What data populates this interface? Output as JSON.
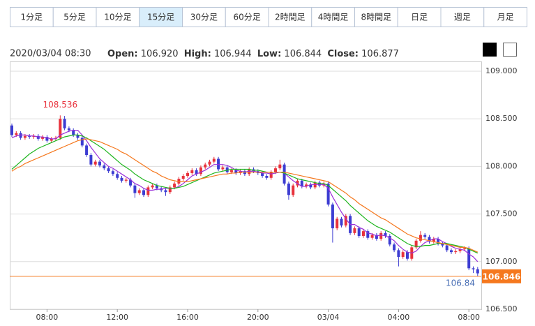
{
  "toolbar": {
    "buttons": [
      "1分足",
      "5分足",
      "10分足",
      "15分足",
      "30分足",
      "60分足",
      "2時間足",
      "4時間足",
      "8時間足",
      "日足",
      "週足",
      "月足"
    ],
    "selected": 3
  },
  "info": {
    "datetime": "2020/03/04 08:30",
    "open_label": "Open:",
    "open": "106.920",
    "high_label": "High:",
    "high": "106.944",
    "low_label": "Low:",
    "low": "106.844",
    "close_label": "Close:",
    "close": "106.877"
  },
  "chart_data": {
    "type": "candlestick",
    "categories": [
      null,
      null,
      null,
      null,
      null,
      null,
      null,
      null,
      "08:00",
      null,
      null,
      null,
      null,
      null,
      null,
      null,
      null,
      null,
      null,
      null,
      null,
      null,
      null,
      null,
      "12:00",
      null,
      null,
      null,
      null,
      null,
      null,
      null,
      null,
      null,
      null,
      null,
      null,
      null,
      null,
      null,
      "16:00",
      null,
      null,
      null,
      null,
      null,
      null,
      null,
      null,
      null,
      null,
      null,
      null,
      null,
      null,
      null,
      "20:00",
      null,
      null,
      null,
      null,
      null,
      null,
      null,
      null,
      null,
      null,
      null,
      null,
      null,
      null,
      null,
      "03/04",
      null,
      null,
      null,
      null,
      null,
      null,
      null,
      null,
      null,
      null,
      null,
      null,
      null,
      null,
      null,
      "04:00",
      null,
      null,
      null,
      null,
      null,
      null,
      null,
      null,
      null,
      null,
      null,
      null,
      null,
      null,
      null,
      "08:00",
      null,
      null
    ],
    "ohlc": [
      [
        108.43,
        108.45,
        108.31,
        108.33
      ],
      [
        108.33,
        108.37,
        108.31,
        108.35
      ],
      [
        108.35,
        108.37,
        108.28,
        108.3
      ],
      [
        108.3,
        108.34,
        108.28,
        108.32
      ],
      [
        108.32,
        108.34,
        108.29,
        108.31
      ],
      [
        108.31,
        108.34,
        108.29,
        108.32
      ],
      [
        108.32,
        108.34,
        108.27,
        108.29
      ],
      [
        108.29,
        108.33,
        108.27,
        108.31
      ],
      [
        108.31,
        108.33,
        108.25,
        108.27
      ],
      [
        108.27,
        108.31,
        108.25,
        108.29
      ],
      [
        108.29,
        108.32,
        108.27,
        108.3
      ],
      [
        108.3,
        108.536,
        108.28,
        108.5
      ],
      [
        108.5,
        108.53,
        108.38,
        108.4
      ],
      [
        108.4,
        108.42,
        108.36,
        108.38
      ],
      [
        108.38,
        108.4,
        108.31,
        108.33
      ],
      [
        108.33,
        108.35,
        108.28,
        108.3
      ],
      [
        108.3,
        108.32,
        108.2,
        108.22
      ],
      [
        108.22,
        108.24,
        108.1,
        108.12
      ],
      [
        108.12,
        108.14,
        108.0,
        108.02
      ],
      [
        108.02,
        108.07,
        108.0,
        108.05
      ],
      [
        108.05,
        108.07,
        107.99,
        108.01
      ],
      [
        108.01,
        108.03,
        107.96,
        107.98
      ],
      [
        107.98,
        108.0,
        107.93,
        107.95
      ],
      [
        107.95,
        107.97,
        107.9,
        107.92
      ],
      [
        107.92,
        107.94,
        107.86,
        107.88
      ],
      [
        107.88,
        107.9,
        107.83,
        107.85
      ],
      [
        107.85,
        107.88,
        107.83,
        107.86
      ],
      [
        107.86,
        107.88,
        107.78,
        107.8
      ],
      [
        107.8,
        107.82,
        107.67,
        107.72
      ],
      [
        107.72,
        107.77,
        107.7,
        107.75
      ],
      [
        107.75,
        107.77,
        107.68,
        107.7
      ],
      [
        107.7,
        107.8,
        107.68,
        107.78
      ],
      [
        107.78,
        107.82,
        107.76,
        107.8
      ],
      [
        107.8,
        107.82,
        107.75,
        107.77
      ],
      [
        107.77,
        107.79,
        107.73,
        107.75
      ],
      [
        107.75,
        107.77,
        107.69,
        107.73
      ],
      [
        107.73,
        107.8,
        107.71,
        107.78
      ],
      [
        107.78,
        107.84,
        107.76,
        107.82
      ],
      [
        107.82,
        107.89,
        107.8,
        107.87
      ],
      [
        107.87,
        107.92,
        107.85,
        107.9
      ],
      [
        107.9,
        107.95,
        107.88,
        107.93
      ],
      [
        107.93,
        107.98,
        107.91,
        107.96
      ],
      [
        107.96,
        107.98,
        107.9,
        107.92
      ],
      [
        107.92,
        108.01,
        107.9,
        107.99
      ],
      [
        107.99,
        108.04,
        107.97,
        108.02
      ],
      [
        108.02,
        108.07,
        108.0,
        108.05
      ],
      [
        108.05,
        108.1,
        108.03,
        108.08
      ],
      [
        108.08,
        108.1,
        107.95,
        107.97
      ],
      [
        107.97,
        108.01,
        107.95,
        107.99
      ],
      [
        107.99,
        108.01,
        107.92,
        107.94
      ],
      [
        107.94,
        107.98,
        107.92,
        107.96
      ],
      [
        107.96,
        107.98,
        107.91,
        107.93
      ],
      [
        107.93,
        107.97,
        107.91,
        107.95
      ],
      [
        107.95,
        107.97,
        107.9,
        107.92
      ],
      [
        107.92,
        107.99,
        107.9,
        107.97
      ],
      [
        107.97,
        107.99,
        107.93,
        107.95
      ],
      [
        107.95,
        107.97,
        107.91,
        107.93
      ],
      [
        107.93,
        107.95,
        107.88,
        107.9
      ],
      [
        107.9,
        107.92,
        107.86,
        107.88
      ],
      [
        107.88,
        107.96,
        107.86,
        107.94
      ],
      [
        107.94,
        108.0,
        107.92,
        107.98
      ],
      [
        107.98,
        108.07,
        107.96,
        108.02
      ],
      [
        108.02,
        108.04,
        107.8,
        107.82
      ],
      [
        107.82,
        107.84,
        107.65,
        107.7
      ],
      [
        107.7,
        107.82,
        107.68,
        107.8
      ],
      [
        107.8,
        107.87,
        107.78,
        107.85
      ],
      [
        107.85,
        107.87,
        107.77,
        107.79
      ],
      [
        107.79,
        107.83,
        107.77,
        107.81
      ],
      [
        107.81,
        107.83,
        107.76,
        107.78
      ],
      [
        107.78,
        107.85,
        107.76,
        107.83
      ],
      [
        107.83,
        107.85,
        107.78,
        107.8
      ],
      [
        107.8,
        107.84,
        107.78,
        107.82
      ],
      [
        107.82,
        107.84,
        107.58,
        107.6
      ],
      [
        107.6,
        107.62,
        107.2,
        107.35
      ],
      [
        107.35,
        107.47,
        107.33,
        107.45
      ],
      [
        107.45,
        107.47,
        107.36,
        107.38
      ],
      [
        107.38,
        107.5,
        107.36,
        107.48
      ],
      [
        107.48,
        107.5,
        107.28,
        107.3
      ],
      [
        107.3,
        107.37,
        107.28,
        107.35
      ],
      [
        107.35,
        107.37,
        107.25,
        107.27
      ],
      [
        107.27,
        107.34,
        107.25,
        107.32
      ],
      [
        107.32,
        107.34,
        107.23,
        107.25
      ],
      [
        107.25,
        107.3,
        107.23,
        107.28
      ],
      [
        107.28,
        107.3,
        107.22,
        107.24
      ],
      [
        107.24,
        107.32,
        107.22,
        107.3
      ],
      [
        107.3,
        107.32,
        107.25,
        107.27
      ],
      [
        107.27,
        107.29,
        107.16,
        107.18
      ],
      [
        107.18,
        107.2,
        107.1,
        107.12
      ],
      [
        107.12,
        107.14,
        106.95,
        107.05
      ],
      [
        107.05,
        107.12,
        107.03,
        107.1
      ],
      [
        107.1,
        107.12,
        107.01,
        107.03
      ],
      [
        107.03,
        107.17,
        107.01,
        107.15
      ],
      [
        107.15,
        107.24,
        107.13,
        107.22
      ],
      [
        107.22,
        107.32,
        107.2,
        107.28
      ],
      [
        107.28,
        107.3,
        107.24,
        107.26
      ],
      [
        107.26,
        107.28,
        107.19,
        107.21
      ],
      [
        107.21,
        107.26,
        107.19,
        107.24
      ],
      [
        107.24,
        107.26,
        107.17,
        107.19
      ],
      [
        107.19,
        107.21,
        107.15,
        107.17
      ],
      [
        107.17,
        107.19,
        107.1,
        107.12
      ],
      [
        107.12,
        107.14,
        107.08,
        107.1
      ],
      [
        107.1,
        107.13,
        107.08,
        107.11
      ],
      [
        107.11,
        107.15,
        107.09,
        107.13
      ],
      [
        107.13,
        107.16,
        107.11,
        107.14
      ],
      [
        107.14,
        107.16,
        106.91,
        106.93
      ],
      [
        106.93,
        106.95,
        106.88,
        106.92
      ],
      [
        106.92,
        106.944,
        106.844,
        106.877
      ]
    ],
    "up_color": "#e8323c",
    "down_color": "#3c3cd2",
    "lines": [
      {
        "color": "#9b30d9",
        "values": [
          108.3,
          108.32,
          108.33,
          108.33,
          108.32,
          108.32,
          108.31,
          108.31,
          108.3,
          108.29,
          108.29,
          108.33,
          108.35,
          108.37,
          108.38,
          108.38,
          108.33,
          108.27,
          108.2,
          108.14,
          108.08,
          108.04,
          108.0,
          107.98,
          107.95,
          107.92,
          107.89,
          107.86,
          107.82,
          107.8,
          107.77,
          107.75,
          107.75,
          107.76,
          107.76,
          107.77,
          107.77,
          107.77,
          107.79,
          107.82,
          107.86,
          107.9,
          107.92,
          107.94,
          107.96,
          107.99,
          108.02,
          108.02,
          108.02,
          108.01,
          107.99,
          107.96,
          107.95,
          107.94,
          107.95,
          107.95,
          107.94,
          107.93,
          107.93,
          107.92,
          107.93,
          107.94,
          107.93,
          107.89,
          107.85,
          107.82,
          107.79,
          107.79,
          107.81,
          107.81,
          107.81,
          107.81,
          107.77,
          107.68,
          107.6,
          107.52,
          107.45,
          107.39,
          107.39,
          107.36,
          107.34,
          107.3,
          107.29,
          107.27,
          107.28,
          107.27,
          107.25,
          107.22,
          107.17,
          107.13,
          107.1,
          107.09,
          107.11,
          107.16,
          107.2,
          107.22,
          107.24,
          107.24,
          107.21,
          107.19,
          107.16,
          107.14,
          107.13,
          107.12,
          107.08,
          107.05,
          107.0
        ]
      },
      {
        "color": "#1fb51f",
        "values": [
          107.97,
          108.01,
          108.05,
          108.09,
          108.13,
          108.16,
          108.19,
          108.21,
          108.23,
          108.25,
          108.27,
          108.29,
          108.31,
          108.32,
          108.33,
          108.33,
          108.32,
          108.3,
          108.27,
          108.24,
          108.21,
          108.18,
          108.14,
          108.1,
          108.06,
          108.02,
          107.99,
          107.96,
          107.92,
          107.89,
          107.86,
          107.84,
          107.82,
          107.8,
          107.79,
          107.78,
          107.77,
          107.77,
          107.78,
          107.79,
          107.81,
          107.83,
          107.85,
          107.87,
          107.89,
          107.91,
          107.93,
          107.94,
          107.95,
          107.96,
          107.97,
          107.97,
          107.97,
          107.97,
          107.97,
          107.96,
          107.96,
          107.95,
          107.94,
          107.94,
          107.94,
          107.94,
          107.93,
          107.91,
          107.89,
          107.87,
          107.86,
          107.85,
          107.84,
          107.83,
          107.82,
          107.82,
          107.8,
          107.76,
          107.72,
          107.68,
          107.64,
          107.59,
          107.55,
          107.51,
          107.47,
          107.43,
          107.4,
          107.37,
          107.35,
          107.33,
          107.31,
          107.28,
          107.25,
          107.22,
          107.19,
          107.17,
          107.16,
          107.16,
          107.17,
          107.17,
          107.18,
          107.19,
          107.19,
          107.19,
          107.18,
          107.17,
          107.16,
          107.15,
          107.13,
          107.11,
          107.09
        ]
      },
      {
        "color": "#f5781e",
        "values": [
          107.95,
          107.98,
          108.0,
          108.03,
          108.05,
          108.07,
          108.09,
          108.11,
          108.13,
          108.15,
          108.17,
          108.19,
          108.21,
          108.23,
          108.25,
          108.27,
          108.28,
          108.29,
          108.28,
          108.27,
          108.26,
          108.24,
          108.22,
          108.2,
          108.18,
          108.15,
          108.13,
          108.1,
          108.07,
          108.04,
          108.01,
          107.98,
          107.95,
          107.93,
          107.9,
          107.88,
          107.86,
          107.85,
          107.84,
          107.84,
          107.84,
          107.85,
          107.86,
          107.87,
          107.88,
          107.89,
          107.9,
          107.91,
          107.92,
          107.92,
          107.93,
          107.93,
          107.94,
          107.94,
          107.94,
          107.94,
          107.94,
          107.94,
          107.94,
          107.94,
          107.94,
          107.94,
          107.94,
          107.93,
          107.92,
          107.91,
          107.9,
          107.89,
          107.88,
          107.87,
          107.86,
          107.85,
          107.84,
          107.81,
          107.78,
          107.75,
          107.72,
          107.68,
          107.65,
          107.61,
          107.58,
          107.55,
          107.52,
          107.49,
          107.46,
          107.44,
          107.41,
          107.38,
          107.35,
          107.32,
          107.29,
          107.27,
          107.25,
          107.24,
          107.23,
          107.22,
          107.21,
          107.2,
          107.19,
          107.18,
          107.17,
          107.16,
          107.15,
          107.15,
          107.14,
          107.12,
          107.1
        ]
      }
    ],
    "ylim": [
      106.5,
      109.0
    ],
    "yticks": [
      {
        "value": 106.5,
        "label": "106.500"
      },
      {
        "value": 107.0,
        "label": "107.000"
      },
      {
        "value": 107.5,
        "label": "107.500"
      },
      {
        "value": 108.0,
        "label": "108.000"
      },
      {
        "value": 108.5,
        "label": "108.500"
      },
      {
        "value": 109.0,
        "label": "109.000"
      }
    ],
    "grid": true,
    "current_price": {
      "value": 106.846,
      "label": "106.846",
      "color": "#f5781e"
    },
    "annotations": [
      {
        "value": 108.536,
        "label": "108.536",
        "color": "#e8323c"
      },
      {
        "value": 106.844,
        "label": "106.84",
        "color": "#4a6fb5"
      }
    ]
  }
}
